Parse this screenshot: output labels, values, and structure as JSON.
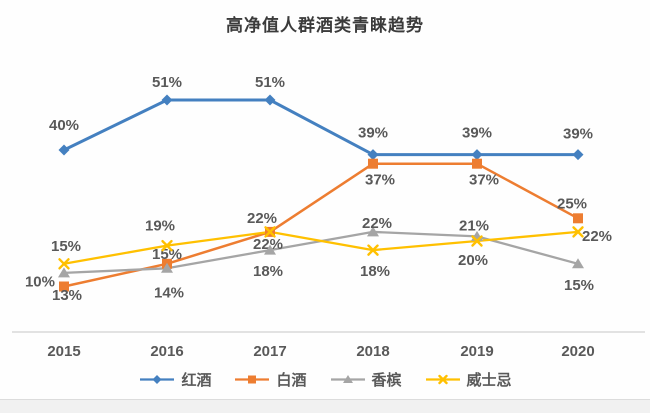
{
  "title": "高净值人群酒类青睐趋势",
  "chart_data": {
    "type": "line",
    "title": "高净值人群酒类青睐趋势",
    "x": [
      "2015",
      "2016",
      "2017",
      "2018",
      "2019",
      "2020"
    ],
    "series": [
      {
        "key": "red-wine",
        "name": "红酒",
        "color": "#4480C0",
        "marker": "diamond",
        "values": [
          40,
          51,
          51,
          39,
          39,
          39
        ]
      },
      {
        "key": "baijiu",
        "name": "白酒",
        "color": "#ED7D31",
        "marker": "square",
        "values": [
          10,
          15,
          22,
          37,
          37,
          25
        ]
      },
      {
        "key": "champagne",
        "name": "香槟",
        "color": "#A5A5A5",
        "marker": "triangle",
        "values": [
          13,
          14,
          18,
          22,
          21,
          15
        ]
      },
      {
        "key": "whisky",
        "name": "威士忌",
        "color": "#FFC000",
        "marker": "x",
        "values": [
          15,
          19,
          22,
          18,
          20,
          22
        ]
      }
    ],
    "label_suffix": "%",
    "ylim": [
      0,
      60
    ],
    "grid": false,
    "y_axis_shown": false,
    "legend_position": "bottom",
    "data_label_color": "#595959",
    "tick_color": "#595959",
    "axis_line_color": "#D9D9D9"
  }
}
